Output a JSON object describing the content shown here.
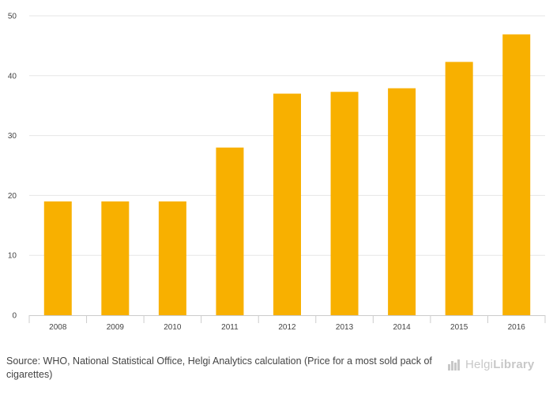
{
  "chart_data": {
    "type": "bar",
    "categories": [
      "2008",
      "2009",
      "2010",
      "2011",
      "2012",
      "2013",
      "2014",
      "2015",
      "2016"
    ],
    "values": [
      19,
      19,
      19,
      28,
      37,
      37.3,
      37.9,
      42.3,
      46.9
    ],
    "title": "",
    "xlabel": "",
    "ylabel": "",
    "ylim": [
      0,
      50
    ],
    "yticks": [
      "0",
      "10",
      "20",
      "30",
      "40",
      "50"
    ],
    "grid": true,
    "bar_color": "#f8b000",
    "grid_color": "#e6e6e6"
  },
  "footer": {
    "source": "Source: WHO, National Statistical Office, Helgi Analytics calculation (Price for a most sold pack of cigarettes)"
  },
  "logo": {
    "text_light": "Helgi",
    "text_bold": "Library",
    "icon": "helgi-library-logo-icon"
  }
}
